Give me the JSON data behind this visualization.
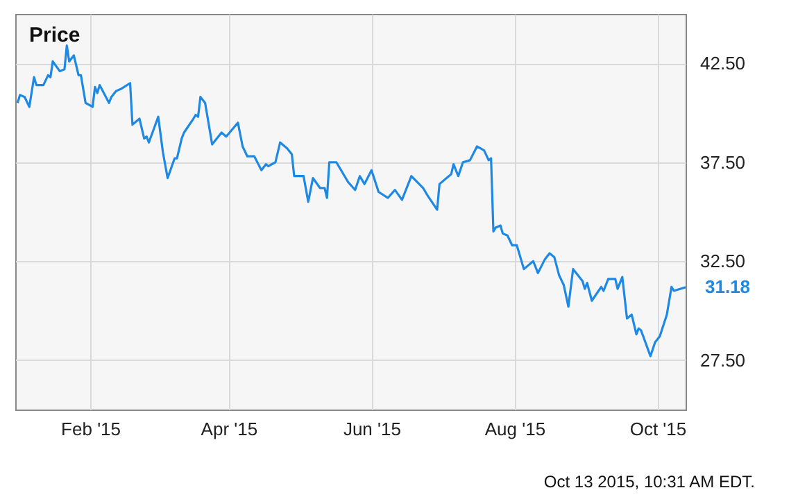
{
  "chart_data": {
    "type": "line",
    "title": "Price",
    "annotations": [
      "Oct 13 2015, 10:31 AM EDT."
    ],
    "xlim": [
      "2014-12-31",
      "2015-10-13"
    ],
    "xticks": [
      {
        "value": "2015-02-01",
        "label": "Feb '15"
      },
      {
        "value": "2015-04-01",
        "label": "Apr '15"
      },
      {
        "value": "2015-06-01",
        "label": "Jun '15"
      },
      {
        "value": "2015-08-01",
        "label": "Aug '15"
      },
      {
        "value": "2015-10-01",
        "label": "Oct '15"
      }
    ],
    "ylim": [
      25,
      45
    ],
    "yticks": [
      {
        "value": 27.5,
        "label": "27.50"
      },
      {
        "value": 32.5,
        "label": "32.50"
      },
      {
        "value": 37.5,
        "label": "37.50"
      },
      {
        "value": 42.5,
        "label": "42.50"
      }
    ],
    "grid": true,
    "marker": "none",
    "line_style": "solid",
    "x": [
      "2015-01-01",
      "2015-01-02",
      "2015-01-04",
      "2015-01-06",
      "2015-01-08",
      "2015-01-09",
      "2015-01-12",
      "2015-01-14",
      "2015-01-15",
      "2015-01-16",
      "2015-01-19",
      "2015-01-21",
      "2015-01-22",
      "2015-01-23",
      "2015-01-25",
      "2015-01-27",
      "2015-01-28",
      "2015-01-30",
      "2015-02-02",
      "2015-02-03",
      "2015-02-04",
      "2015-02-05",
      "2015-02-09",
      "2015-02-10",
      "2015-02-12",
      "2015-02-14",
      "2015-02-18",
      "2015-02-19",
      "2015-02-22",
      "2015-02-24",
      "2015-02-25",
      "2015-02-26",
      "2015-03-02",
      "2015-03-04",
      "2015-03-06",
      "2015-03-09",
      "2015-03-10",
      "2015-03-12",
      "2015-03-13",
      "2015-03-17",
      "2015-03-18",
      "2015-03-19",
      "2015-03-20",
      "2015-03-22",
      "2015-03-25",
      "2015-03-29",
      "2015-03-31",
      "2015-04-05",
      "2015-04-07",
      "2015-04-09",
      "2015-04-12",
      "2015-04-15",
      "2015-04-17",
      "2015-04-18",
      "2015-04-21",
      "2015-04-23",
      "2015-04-26",
      "2015-04-28",
      "2015-04-29",
      "2015-05-03",
      "2015-05-05",
      "2015-05-07",
      "2015-05-10",
      "2015-05-12",
      "2015-05-13",
      "2015-05-14",
      "2015-05-17",
      "2015-05-22",
      "2015-05-25",
      "2015-05-27",
      "2015-05-29",
      "2015-06-01",
      "2015-06-04",
      "2015-06-08",
      "2015-06-11",
      "2015-06-14",
      "2015-06-18",
      "2015-06-23",
      "2015-06-25",
      "2015-06-29",
      "2015-06-30",
      "2015-07-05",
      "2015-07-06",
      "2015-07-08",
      "2015-07-10",
      "2015-07-13",
      "2015-07-16",
      "2015-07-19",
      "2015-07-21",
      "2015-07-22",
      "2015-07-23",
      "2015-07-24",
      "2015-07-26",
      "2015-07-27",
      "2015-07-29",
      "2015-07-31",
      "2015-08-02",
      "2015-08-05",
      "2015-08-09",
      "2015-08-11",
      "2015-08-14",
      "2015-08-16",
      "2015-08-18",
      "2015-08-20",
      "2015-08-22",
      "2015-08-24",
      "2015-08-26",
      "2015-08-30",
      "2015-08-31",
      "2015-09-01",
      "2015-09-03",
      "2015-09-07",
      "2015-09-08",
      "2015-09-10",
      "2015-09-13",
      "2015-09-14",
      "2015-09-16",
      "2015-09-18",
      "2015-09-20",
      "2015-09-22",
      "2015-09-23",
      "2015-09-24",
      "2015-09-28",
      "2015-09-30",
      "2015-10-02",
      "2015-10-05",
      "2015-10-07",
      "2015-10-08",
      "2015-10-13"
    ],
    "series": [
      {
        "color": "#1e88e5",
        "values": [
          40.5,
          40.9,
          40.8,
          40.3,
          41.8,
          41.4,
          41.4,
          41.9,
          41.8,
          42.6,
          42.1,
          42.2,
          43.4,
          42.6,
          42.9,
          41.9,
          41.9,
          40.5,
          40.3,
          41.3,
          41.0,
          41.4,
          40.5,
          40.8,
          41.1,
          41.2,
          41.5,
          39.4,
          39.7,
          38.7,
          38.8,
          38.5,
          39.8,
          38.0,
          36.7,
          37.7,
          37.7,
          38.7,
          39.0,
          39.7,
          39.9,
          39.8,
          40.8,
          40.5,
          38.4,
          39.0,
          38.8,
          39.5,
          38.3,
          37.8,
          37.8,
          37.1,
          37.4,
          37.3,
          37.5,
          38.5,
          38.2,
          37.9,
          36.8,
          36.8,
          35.5,
          36.7,
          36.2,
          36.2,
          35.7,
          37.5,
          37.5,
          36.5,
          36.1,
          36.8,
          36.4,
          37.1,
          36.0,
          35.7,
          36.1,
          35.6,
          36.8,
          36.2,
          35.8,
          35.1,
          36.4,
          36.9,
          37.4,
          36.8,
          37.5,
          37.6,
          38.3,
          38.1,
          37.6,
          37.7,
          34.0,
          34.2,
          34.3,
          33.9,
          33.8,
          33.3,
          33.3,
          32.1,
          32.5,
          31.9,
          32.6,
          32.9,
          32.7,
          31.8,
          31.3,
          30.2,
          32.1,
          31.5,
          31.1,
          31.4,
          30.5,
          31.2,
          31.0,
          31.6,
          31.6,
          31.1,
          31.7,
          29.6,
          29.8,
          28.8,
          29.1,
          29.0,
          27.7,
          28.4,
          28.7,
          29.8,
          31.2,
          31.0,
          31.18
        ],
        "value_labels": [
          null,
          null,
          null,
          null,
          null,
          null,
          null,
          null,
          null,
          null,
          null,
          null,
          null,
          null,
          null,
          null,
          null,
          null,
          null,
          null,
          null,
          null,
          null,
          null,
          null,
          null,
          null,
          null,
          null,
          null,
          null,
          null,
          null,
          null,
          null,
          null,
          null,
          null,
          null,
          null,
          null,
          null,
          null,
          null,
          null,
          null,
          null,
          null,
          null,
          null,
          null,
          null,
          null,
          null,
          null,
          null,
          null,
          null,
          null,
          null,
          null,
          null,
          null,
          null,
          null,
          null,
          null,
          null,
          null,
          null,
          null,
          null,
          null,
          null,
          null,
          null,
          null,
          null,
          null,
          null,
          null,
          null,
          null,
          null,
          null,
          null,
          null,
          null,
          null,
          null,
          null,
          null,
          null,
          null,
          null,
          null,
          null,
          null,
          null,
          null,
          null,
          null,
          null,
          null,
          null,
          null,
          null,
          null,
          null,
          null,
          null,
          null,
          null,
          null,
          null,
          null,
          null,
          null,
          null,
          null,
          null,
          null,
          null,
          null,
          null,
          null,
          null,
          null,
          "31.18"
        ]
      }
    ]
  }
}
